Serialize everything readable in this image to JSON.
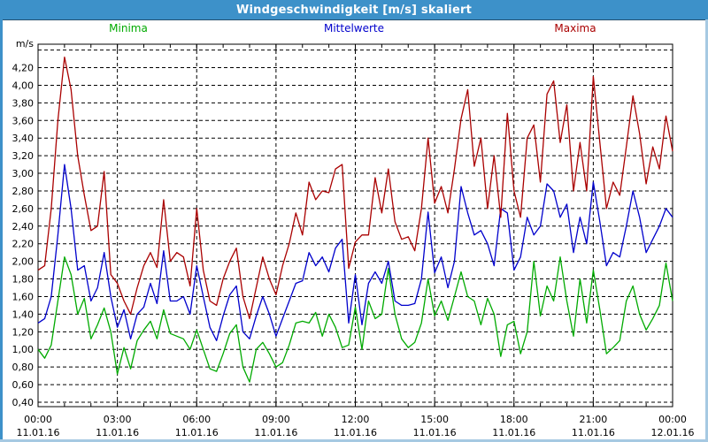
{
  "window": {
    "title": "Windgeschwindigkeit [m/s] skaliert",
    "titlebar_color": "#3d91c9",
    "border_color_left": "#3d91c9",
    "border_color_lightblue": "#a6c9e2"
  },
  "legend": {
    "items": [
      {
        "label": "Minima",
        "color": "#00aa00"
      },
      {
        "label": "Mittelwerte",
        "color": "#0000cc"
      },
      {
        "label": "Maxima",
        "color": "#aa0000"
      }
    ]
  },
  "axes": {
    "y_unit_label": "m/s",
    "y_grid": {
      "min": 0.4,
      "max": 4.4,
      "step": 0.2
    },
    "y_ticks": [
      {
        "value": 4.2,
        "label": "4,20"
      },
      {
        "value": 4.0,
        "label": "4,00"
      },
      {
        "value": 3.8,
        "label": "3,80"
      },
      {
        "value": 3.6,
        "label": "3,60"
      },
      {
        "value": 3.4,
        "label": "3,40"
      },
      {
        "value": 3.2,
        "label": "3,20"
      },
      {
        "value": 3.0,
        "label": "3,00"
      },
      {
        "value": 2.8,
        "label": "2,80"
      },
      {
        "value": 2.6,
        "label": "2,60"
      },
      {
        "value": 2.4,
        "label": "2,40"
      },
      {
        "value": 2.2,
        "label": "2,20"
      },
      {
        "value": 2.0,
        "label": "2,00"
      },
      {
        "value": 1.8,
        "label": "1,80"
      },
      {
        "value": 1.6,
        "label": "1,60"
      },
      {
        "value": 1.4,
        "label": "1,40"
      },
      {
        "value": 1.2,
        "label": "1,20"
      },
      {
        "value": 1.0,
        "label": "1,00"
      },
      {
        "value": 0.8,
        "label": "0,80"
      },
      {
        "value": 0.6,
        "label": "0,60"
      },
      {
        "value": 0.4,
        "label": "0,40"
      }
    ],
    "x_ticks": [
      {
        "hour": 0,
        "time": "00:00",
        "date": "11.01.16"
      },
      {
        "hour": 3,
        "time": "03:00",
        "date": "11.01.16"
      },
      {
        "hour": 6,
        "time": "06:00",
        "date": "11.01.16"
      },
      {
        "hour": 9,
        "time": "09:00",
        "date": "11.01.16"
      },
      {
        "hour": 12,
        "time": "12:00",
        "date": "11.01.16"
      },
      {
        "hour": 15,
        "time": "15:00",
        "date": "11.01.16"
      },
      {
        "hour": 18,
        "time": "18:00",
        "date": "11.01.16"
      },
      {
        "hour": 21,
        "time": "21:00",
        "date": "11.01.16"
      },
      {
        "hour": 24,
        "time": "00:00",
        "date": "12.01.16"
      }
    ],
    "x_minor_tick_step_hours": 1
  },
  "chart_data": {
    "type": "line",
    "title": "Windgeschwindigkeit [m/s] skaliert",
    "ylabel": "m/s",
    "ylim": [
      0.4,
      4.4
    ],
    "x_range_hours": [
      0,
      24
    ],
    "grid": "dashed",
    "legend_position": "top",
    "x_hours": [
      0,
      0.25,
      0.5,
      0.75,
      1,
      1.25,
      1.5,
      1.75,
      2,
      2.25,
      2.5,
      2.75,
      3,
      3.25,
      3.5,
      3.75,
      4,
      4.25,
      4.5,
      4.75,
      5,
      5.25,
      5.5,
      5.75,
      6,
      6.25,
      6.5,
      6.75,
      7,
      7.25,
      7.5,
      7.75,
      8,
      8.25,
      8.5,
      8.75,
      9,
      9.25,
      9.5,
      9.75,
      10,
      10.25,
      10.5,
      10.75,
      11,
      11.25,
      11.5,
      11.75,
      12,
      12.25,
      12.5,
      12.75,
      13,
      13.25,
      13.5,
      13.75,
      14,
      14.25,
      14.5,
      14.75,
      15,
      15.25,
      15.5,
      15.75,
      16,
      16.25,
      16.5,
      16.75,
      17,
      17.25,
      17.5,
      17.75,
      18,
      18.25,
      18.5,
      18.75,
      19,
      19.25,
      19.5,
      19.75,
      20,
      20.25,
      20.5,
      20.75,
      21,
      21.25,
      21.5,
      21.75,
      22,
      22.25,
      22.5,
      22.75,
      23,
      23.25,
      23.5,
      23.75,
      24
    ],
    "series": [
      {
        "name": "Minima",
        "color": "#00aa00",
        "values": [
          1.0,
          0.9,
          1.05,
          1.55,
          2.05,
          1.85,
          1.4,
          1.58,
          1.12,
          1.28,
          1.47,
          1.2,
          0.72,
          1.02,
          0.78,
          1.1,
          1.22,
          1.32,
          1.12,
          1.45,
          1.18,
          1.15,
          1.12,
          1.0,
          1.22,
          1.0,
          0.78,
          0.75,
          0.95,
          1.18,
          1.28,
          0.8,
          0.63,
          1.0,
          1.08,
          0.95,
          0.8,
          0.85,
          1.05,
          1.3,
          1.32,
          1.3,
          1.42,
          1.15,
          1.4,
          1.25,
          1.02,
          1.05,
          1.48,
          1.0,
          1.55,
          1.35,
          1.4,
          1.92,
          1.4,
          1.12,
          1.02,
          1.08,
          1.3,
          1.8,
          1.38,
          1.55,
          1.33,
          1.6,
          1.88,
          1.6,
          1.55,
          1.28,
          1.58,
          1.4,
          0.92,
          1.28,
          1.32,
          0.95,
          1.2,
          2.0,
          1.38,
          1.72,
          1.55,
          2.05,
          1.55,
          1.15,
          1.8,
          1.3,
          1.9,
          1.45,
          0.95,
          1.02,
          1.1,
          1.55,
          1.72,
          1.4,
          1.22,
          1.35,
          1.5,
          1.98,
          1.55
        ]
      },
      {
        "name": "Mittelwerte",
        "color": "#0000cc",
        "values": [
          1.3,
          1.35,
          1.6,
          2.3,
          3.1,
          2.6,
          1.9,
          1.95,
          1.55,
          1.7,
          2.1,
          1.6,
          1.25,
          1.45,
          1.12,
          1.4,
          1.48,
          1.75,
          1.52,
          2.12,
          1.55,
          1.55,
          1.6,
          1.4,
          1.95,
          1.6,
          1.25,
          1.1,
          1.38,
          1.62,
          1.72,
          1.2,
          1.12,
          1.38,
          1.6,
          1.4,
          1.15,
          1.35,
          1.55,
          1.75,
          1.78,
          2.1,
          1.95,
          2.05,
          1.88,
          2.15,
          2.25,
          1.3,
          1.85,
          1.28,
          1.75,
          1.88,
          1.75,
          2.0,
          1.55,
          1.5,
          1.5,
          1.52,
          1.8,
          2.56,
          1.87,
          2.05,
          1.7,
          2.0,
          2.85,
          2.55,
          2.3,
          2.35,
          2.2,
          1.95,
          2.6,
          2.55,
          1.9,
          2.05,
          2.5,
          2.3,
          2.4,
          2.88,
          2.8,
          2.5,
          2.65,
          2.1,
          2.5,
          2.2,
          2.9,
          2.45,
          1.95,
          2.1,
          2.05,
          2.4,
          2.8,
          2.5,
          2.1,
          2.25,
          2.4,
          2.6,
          2.5
        ]
      },
      {
        "name": "Maxima",
        "color": "#aa0000",
        "values": [
          1.9,
          1.95,
          2.6,
          3.6,
          4.32,
          3.95,
          3.2,
          2.75,
          2.35,
          2.4,
          3.02,
          1.85,
          1.75,
          1.55,
          1.4,
          1.7,
          1.95,
          2.1,
          1.93,
          2.7,
          2.0,
          2.1,
          2.05,
          1.72,
          2.6,
          1.9,
          1.55,
          1.5,
          1.8,
          2.0,
          2.15,
          1.6,
          1.35,
          1.7,
          2.05,
          1.8,
          1.62,
          1.95,
          2.2,
          2.55,
          2.3,
          2.9,
          2.7,
          2.8,
          2.78,
          3.05,
          3.1,
          1.92,
          2.22,
          2.3,
          2.3,
          2.95,
          2.55,
          3.05,
          2.45,
          2.25,
          2.28,
          2.12,
          2.6,
          3.4,
          2.66,
          2.85,
          2.55,
          3.05,
          3.62,
          3.95,
          3.08,
          3.4,
          2.6,
          3.2,
          2.5,
          3.68,
          2.8,
          2.5,
          3.4,
          3.55,
          2.9,
          3.9,
          4.05,
          3.35,
          3.78,
          2.8,
          3.35,
          2.8,
          4.1,
          3.35,
          2.6,
          2.9,
          2.75,
          3.3,
          3.88,
          3.45,
          2.88,
          3.3,
          3.05,
          3.65,
          3.25
        ]
      }
    ]
  }
}
